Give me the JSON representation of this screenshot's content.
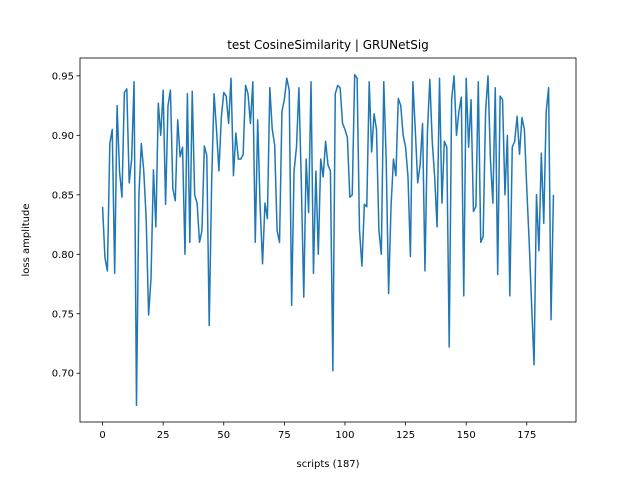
{
  "chart_data": {
    "type": "line",
    "title": "test CosineSimilarity | GRUNetSig",
    "x_label": "scripts (187)",
    "y_label": "loss amplitude",
    "x": [
      0,
      1,
      2,
      3,
      4,
      5,
      6,
      7,
      8,
      9,
      10,
      11,
      12,
      13,
      14,
      15,
      16,
      17,
      18,
      19,
      20,
      21,
      22,
      23,
      24,
      25,
      26,
      27,
      28,
      29,
      30,
      31,
      32,
      33,
      34,
      35,
      36,
      37,
      38,
      39,
      40,
      41,
      42,
      43,
      44,
      45,
      46,
      47,
      48,
      49,
      50,
      51,
      52,
      53,
      54,
      55,
      56,
      57,
      58,
      59,
      60,
      61,
      62,
      63,
      64,
      65,
      66,
      67,
      68,
      69,
      70,
      71,
      72,
      73,
      74,
      75,
      76,
      77,
      78,
      79,
      80,
      81,
      82,
      83,
      84,
      85,
      86,
      87,
      88,
      89,
      90,
      91,
      92,
      93,
      94,
      95,
      96,
      97,
      98,
      99,
      100,
      101,
      102,
      103,
      104,
      105,
      106,
      107,
      108,
      109,
      110,
      111,
      112,
      113,
      114,
      115,
      116,
      117,
      118,
      119,
      120,
      121,
      122,
      123,
      124,
      125,
      126,
      127,
      128,
      129,
      130,
      131,
      132,
      133,
      134,
      135,
      136,
      137,
      138,
      139,
      140,
      141,
      142,
      143,
      144,
      145,
      146,
      147,
      148,
      149,
      150,
      151,
      152,
      153,
      154,
      155,
      156,
      157,
      158,
      159,
      160,
      161,
      162,
      163,
      164,
      165,
      166,
      167,
      168,
      169,
      170,
      171,
      172,
      173,
      174,
      175,
      176,
      177,
      178,
      179,
      180,
      181,
      182,
      183,
      184,
      185,
      186
    ],
    "series": [
      {
        "color": "#1f77b4",
        "values": [
          0.84,
          0.797,
          0.786,
          0.893,
          0.905,
          0.784,
          0.925,
          0.87,
          0.848,
          0.936,
          0.939,
          0.86,
          0.88,
          0.945,
          0.673,
          0.85,
          0.893,
          0.87,
          0.83,
          0.749,
          0.78,
          0.871,
          0.823,
          0.927,
          0.9,
          0.938,
          0.842,
          0.925,
          0.938,
          0.855,
          0.845,
          0.913,
          0.882,
          0.89,
          0.8,
          0.935,
          0.81,
          0.937,
          0.85,
          0.843,
          0.81,
          0.82,
          0.891,
          0.883,
          0.74,
          0.86,
          0.935,
          0.905,
          0.87,
          0.915,
          0.936,
          0.933,
          0.91,
          0.948,
          0.866,
          0.902,
          0.88,
          0.88,
          0.884,
          0.942,
          0.935,
          0.91,
          0.945,
          0.81,
          0.913,
          0.84,
          0.792,
          0.843,
          0.83,
          0.94,
          0.905,
          0.892,
          0.82,
          0.81,
          0.92,
          0.93,
          0.948,
          0.938,
          0.757,
          0.87,
          0.89,
          0.94,
          0.86,
          0.764,
          0.88,
          0.835,
          0.945,
          0.784,
          0.87,
          0.8,
          0.88,
          0.865,
          0.895,
          0.875,
          0.87,
          0.702,
          0.935,
          0.942,
          0.94,
          0.91,
          0.905,
          0.898,
          0.848,
          0.85,
          0.951,
          0.948,
          0.82,
          0.79,
          0.842,
          0.84,
          0.945,
          0.886,
          0.918,
          0.905,
          0.82,
          0.8,
          0.945,
          0.88,
          0.767,
          0.84,
          0.88,
          0.866,
          0.931,
          0.925,
          0.9,
          0.89,
          0.865,
          0.798,
          0.945,
          0.905,
          0.86,
          0.875,
          0.91,
          0.786,
          0.902,
          0.947,
          0.895,
          0.865,
          0.823,
          0.948,
          0.843,
          0.895,
          0.89,
          0.722,
          0.93,
          0.95,
          0.9,
          0.92,
          0.932,
          0.765,
          0.948,
          0.89,
          0.93,
          0.836,
          0.84,
          0.945,
          0.81,
          0.815,
          0.92,
          0.95,
          0.88,
          0.843,
          0.94,
          0.783,
          0.933,
          0.93,
          0.85,
          0.9,
          0.765,
          0.89,
          0.895,
          0.916,
          0.884,
          0.915,
          0.905,
          0.855,
          0.81,
          0.757,
          0.707,
          0.85,
          0.803,
          0.885,
          0.826,
          0.92,
          0.94,
          0.745,
          0.85
        ]
      }
    ],
    "xlim": [
      -9.3,
      195.3
    ],
    "ylim": [
      0.659,
      0.965
    ],
    "xticks": [
      0,
      25,
      50,
      75,
      100,
      125,
      150,
      175
    ],
    "yticks": [
      {
        "value": 0.7,
        "label": "0.70"
      },
      0.75,
      {
        "value": 0.8,
        "label": "0.80"
      },
      0.85,
      {
        "value": 0.9,
        "label": "0.90"
      },
      0.95
    ],
    "grid": false
  }
}
